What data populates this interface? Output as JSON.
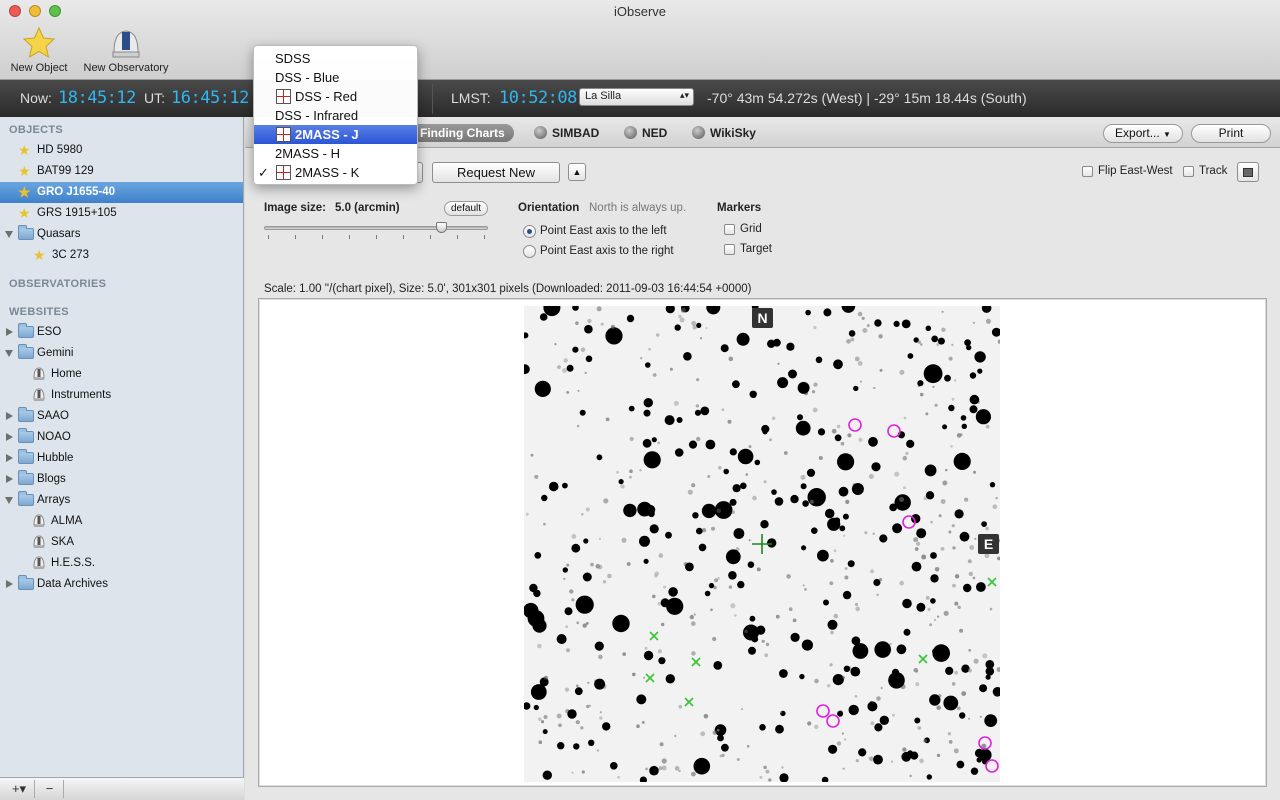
{
  "window": {
    "title": "iObserve"
  },
  "toolbar": {
    "new_object": "New Object",
    "new_observatory": "New Observatory"
  },
  "timebar": {
    "now_label": "Now:",
    "now_value": "18:45:12",
    "ut_label": "UT:",
    "ut_value": "16:45:12",
    "lmst_label": "LMST:",
    "lmst_value": "10:52:08",
    "site": "La Silla",
    "coordinates": "-70° 43m 54.272s (West) | -29° 15m 18.44s (South)"
  },
  "sidebar": {
    "objects_header": "OBJECTS",
    "objects": [
      {
        "label": "HD 5980"
      },
      {
        "label": "BAT99 129"
      },
      {
        "label": "GRO J1655-40"
      },
      {
        "label": "GRS 1915+105"
      },
      {
        "label": "Quasars"
      },
      {
        "label": "3C 273"
      }
    ],
    "observatories_header": "OBSERVATORIES",
    "websites_header": "WEBSITES",
    "websites": [
      {
        "label": "ESO"
      },
      {
        "label": "Gemini"
      },
      {
        "label": "Home"
      },
      {
        "label": "Instruments"
      },
      {
        "label": "SAAO"
      },
      {
        "label": "NOAO"
      },
      {
        "label": "Hubble"
      },
      {
        "label": "Blogs"
      },
      {
        "label": "Arrays"
      },
      {
        "label": "ALMA"
      },
      {
        "label": "SKA"
      },
      {
        "label": "H.E.S.S."
      },
      {
        "label": "Data Archives"
      }
    ],
    "add_label": "+▾",
    "remove_label": "−"
  },
  "tabs": {
    "finding_charts": "Finding Charts",
    "simbad": "SIMBAD",
    "ned": "NED",
    "wikisky": "WikiSky",
    "export": "Export...",
    "print": "Print"
  },
  "menu": {
    "items": [
      {
        "label": "SDSS"
      },
      {
        "label": "DSS - Blue"
      },
      {
        "label": "DSS - Red"
      },
      {
        "label": "DSS - Infrared"
      },
      {
        "label": "2MASS - J"
      },
      {
        "label": "2MASS - H"
      },
      {
        "label": "2MASS - K"
      }
    ],
    "check": "✓"
  },
  "controls": {
    "request_new": "Request New",
    "stepper": "▲",
    "flip_east_west": "Flip East-West",
    "track": "Track",
    "image_size_label": "Image size:",
    "image_size_value": "5.0 (arcmin)",
    "default_button": "default",
    "orientation_label": "Orientation",
    "orientation_note": "North is always up.",
    "point_east_left": "Point East axis to the left",
    "point_east_right": "Point East axis to the right",
    "markers_label": "Markers",
    "grid": "Grid",
    "target": "Target",
    "slider_fraction": 0.79
  },
  "chart": {
    "info": "Scale: 1.00 ''/(chart pixel), Size: 5.0', 301x301 pixels (Downloaded: 2011-09-03 16:44:54 +0000)",
    "north_label": "N",
    "east_label": "E"
  },
  "colors": {
    "accent_time": "#30b6f0",
    "selection": "#3f80c9",
    "marker_magenta": "#e020e0",
    "marker_green": "#35c535"
  }
}
